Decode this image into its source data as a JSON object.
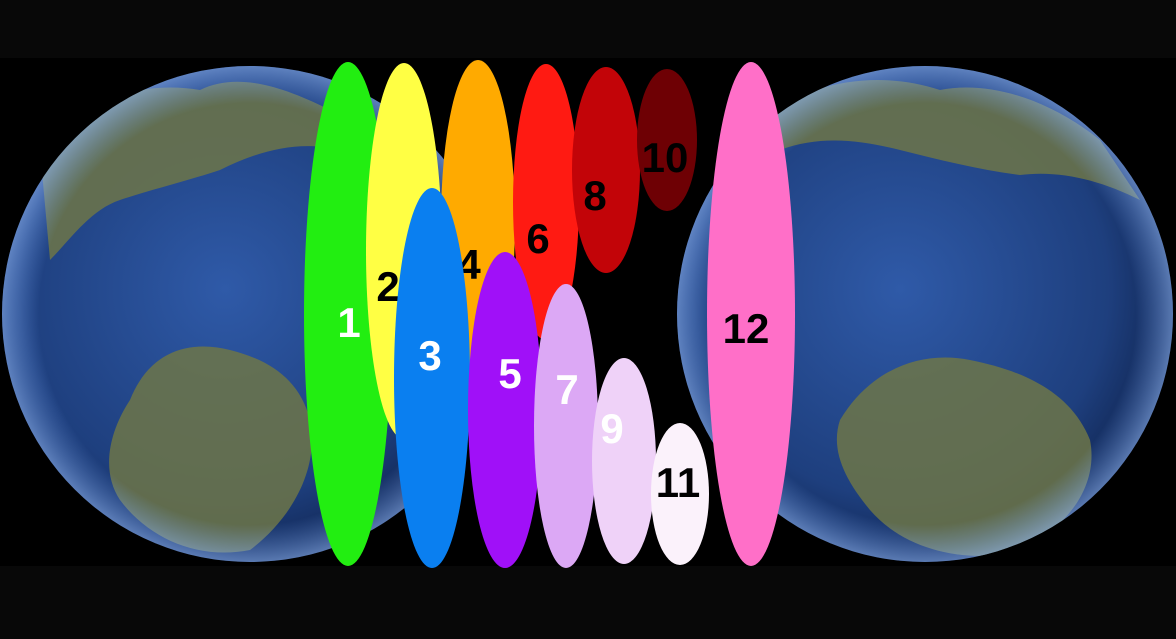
{
  "figure": {
    "background_color": "#080808",
    "band_color": "#000000",
    "globes": [
      {
        "name": "globe-left",
        "ocean": "#1e3f7e",
        "land": "#6d7548"
      },
      {
        "name": "globe-right",
        "ocean": "#1e3f7e",
        "land": "#6d7548"
      }
    ],
    "ellipses": [
      {
        "label": "1",
        "fill": "#22ee11",
        "text_color": "#ffffff"
      },
      {
        "label": "2",
        "fill": "#ffff44",
        "text_color": "#000000"
      },
      {
        "label": "3",
        "fill": "#0a7ff0",
        "text_color": "#ffffff"
      },
      {
        "label": "4",
        "fill": "#ffaa00",
        "text_color": "#000000"
      },
      {
        "label": "5",
        "fill": "#a010f8",
        "text_color": "#ffffff"
      },
      {
        "label": "6",
        "fill": "#ff1a12",
        "text_color": "#000000"
      },
      {
        "label": "7",
        "fill": "#dca8f5",
        "text_color": "#ffffff"
      },
      {
        "label": "8",
        "fill": "#c20408",
        "text_color": "#000000"
      },
      {
        "label": "9",
        "fill": "#efd2f8",
        "text_color": "#ffffff"
      },
      {
        "label": "10",
        "fill": "#6e0004",
        "text_color": "#000000"
      },
      {
        "label": "11",
        "fill": "#fbf2fb",
        "text_color": "#000000"
      },
      {
        "label": "12",
        "fill": "#ff6fc8",
        "text_color": "#000000"
      }
    ]
  }
}
